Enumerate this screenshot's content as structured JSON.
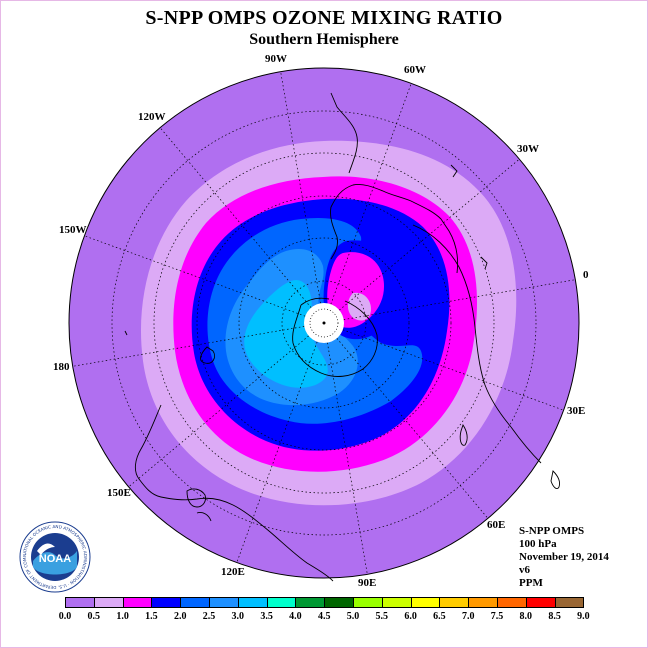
{
  "title": "S-NPP OMPS OZONE MIXING RATIO",
  "subtitle": "Southern Hemisphere",
  "longitude_labels": {
    "w90": "90W",
    "w60": "60W",
    "w30": "30W",
    "e0": "0",
    "e30": "30E",
    "e60": "60E",
    "e90": "90E",
    "e120": "120E",
    "e150": "150E",
    "e180": "180",
    "w150": "150W",
    "w120": "120W"
  },
  "info": {
    "instrument": "S-NPP OMPS",
    "pressure_level": "100 hPa",
    "date": "November 19, 2014",
    "version": "v6",
    "units": "PPM"
  },
  "logo": {
    "text": "NOAA",
    "ring_text": "NATIONAL OCEANIC AND ATMOSPHERIC ADMINISTRATION · U.S. DEPARTMENT OF COMMERCE"
  },
  "colorbar": {
    "ticks": [
      "0.0",
      "0.5",
      "1.0",
      "1.5",
      "2.0",
      "2.5",
      "3.0",
      "3.5",
      "4.0",
      "4.5",
      "5.0",
      "5.5",
      "6.0",
      "6.5",
      "7.0",
      "7.5",
      "8.0",
      "8.5",
      "9.0"
    ],
    "colors": [
      "#b06ff0",
      "#dcaaf6",
      "#ff00ff",
      "#0000ff",
      "#0066ff",
      "#1e90ff",
      "#00bfff",
      "#00ffcc",
      "#009933",
      "#006600",
      "#99ff00",
      "#ccff00",
      "#ffff00",
      "#ffcc00",
      "#ff9900",
      "#ff6600",
      "#ff0000",
      "#996633"
    ]
  }
}
